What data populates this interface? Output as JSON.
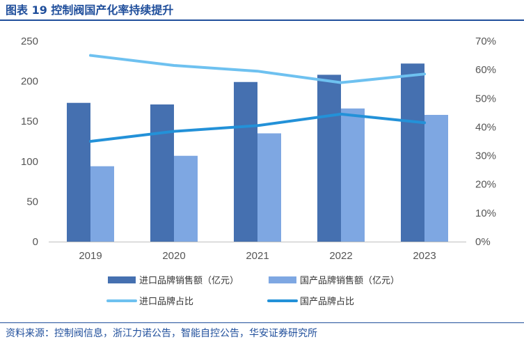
{
  "header": {
    "title": "图表 19 控制阀国产化率持续提升"
  },
  "footer": {
    "source": "资料来源：控制阀信息，浙江力诺公告，智能自控公告，华安证券研究所"
  },
  "colors": {
    "import_sales": "#4570b0",
    "domestic_sales": "#7ea7e2",
    "import_share": "#6ec1f0",
    "domestic_share": "#2391d8",
    "title": "#1f4e9b"
  },
  "chart_data": {
    "type": "bar",
    "categories": [
      "2019",
      "2020",
      "2021",
      "2022",
      "2023"
    ],
    "series": [
      {
        "name": "进口品牌销售额（亿元）",
        "type": "bar",
        "axis": "left",
        "values": [
          173,
          171,
          199,
          208,
          222
        ]
      },
      {
        "name": "国产品牌销售额（亿元）",
        "type": "bar",
        "axis": "left",
        "values": [
          94,
          107,
          135,
          166,
          158
        ]
      },
      {
        "name": "进口品牌占比",
        "type": "line",
        "axis": "right",
        "values": [
          65,
          61.5,
          59.5,
          55.5,
          58.5
        ]
      },
      {
        "name": "国产品牌占比",
        "type": "line",
        "axis": "right",
        "values": [
          35,
          38.5,
          40.5,
          44.5,
          41.5
        ]
      }
    ],
    "y_left": {
      "min": 0,
      "max": 250,
      "ticks": [
        "0",
        "50",
        "100",
        "150",
        "200",
        "250"
      ]
    },
    "y_right": {
      "min": 0,
      "max": 70,
      "ticks": [
        "0%",
        "10%",
        "20%",
        "30%",
        "40%",
        "50%",
        "60%",
        "70%"
      ]
    },
    "grid": false,
    "legend_position": "bottom"
  }
}
